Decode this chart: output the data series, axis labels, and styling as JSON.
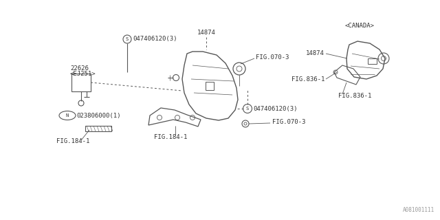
{
  "bg_color": "#ffffff",
  "line_color": "#555555",
  "text_color": "#333333",
  "watermark": "A081001111",
  "font_size": 6.5,
  "labels": {
    "screw_top": "047406120(3)",
    "screw_top_letter": "S",
    "part14874_top": "14874",
    "fig070_3_top": "FIG.070-3",
    "fig070_3_bot": "FIG.070-3",
    "part22626_line1": "22626",
    "part22626_line2": "<EJ251>",
    "partN_letter": "N",
    "partN_text": "023806000(1)",
    "fig184_left": "FIG.184-1",
    "fig184_bot": "FIG.184-1",
    "screw_mid": "047406120(3)",
    "screw_mid_letter": "S",
    "canada": "<CANADA>",
    "part14874_right": "14874",
    "fig836_top": "FIG.836-1",
    "fig836_bot": "FIG.836-1"
  }
}
